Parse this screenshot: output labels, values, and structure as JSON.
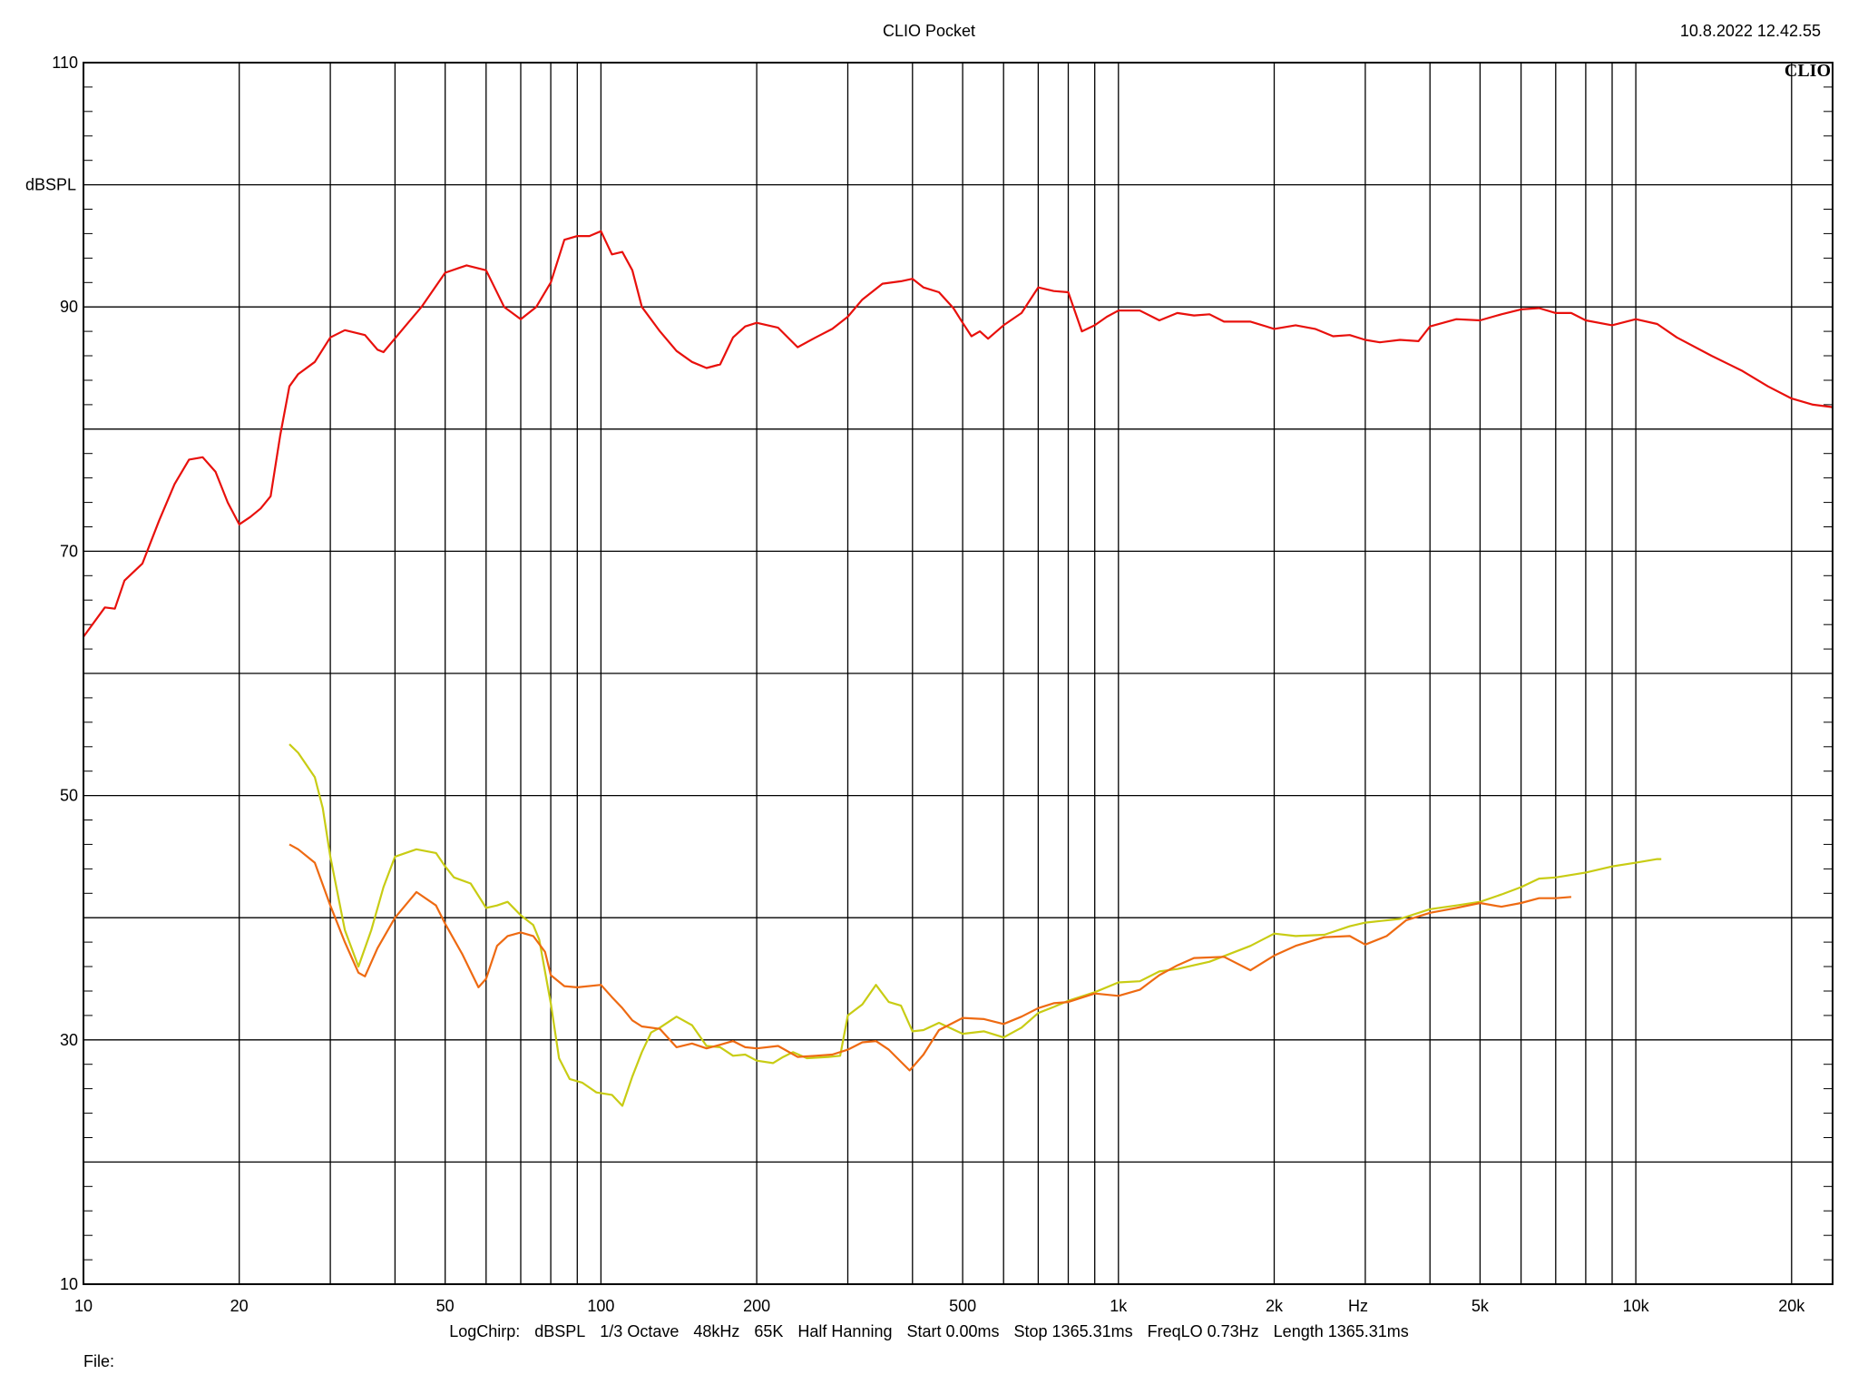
{
  "header": {
    "title": "CLIO Pocket",
    "timestamp": "10.8.2022 12.42.55",
    "logo": "CLIO"
  },
  "footer": {
    "settings": [
      "LogChirp:",
      "dBSPL",
      "1/3 Octave",
      "48kHz",
      "65K",
      "Half Hanning",
      "Start 0.00ms",
      "Stop 1365.31ms",
      "FreqLO 0.73Hz",
      "Length 1365.31ms"
    ],
    "file_label": "File:"
  },
  "chart_data": {
    "type": "line",
    "title": "",
    "xlabel": "Hz",
    "ylabel": "dBSPL",
    "xscale": "log",
    "xlim": [
      10,
      24000
    ],
    "ylim": [
      10,
      110
    ],
    "grid": true,
    "x_major_gridlines": [
      10,
      20,
      30,
      40,
      50,
      60,
      70,
      80,
      90,
      100,
      200,
      300,
      400,
      500,
      600,
      700,
      800,
      900,
      1000,
      2000,
      3000,
      4000,
      5000,
      6000,
      7000,
      8000,
      9000,
      10000,
      20000
    ],
    "y_gridlines": [
      10,
      20,
      30,
      40,
      50,
      60,
      70,
      80,
      90,
      100,
      110
    ],
    "x_tick_labels": [
      {
        "value": 10,
        "label": "10"
      },
      {
        "value": 20,
        "label": "20"
      },
      {
        "value": 50,
        "label": "50"
      },
      {
        "value": 100,
        "label": "100"
      },
      {
        "value": 200,
        "label": "200"
      },
      {
        "value": 500,
        "label": "500"
      },
      {
        "value": 1000,
        "label": "1k"
      },
      {
        "value": 2000,
        "label": "2k"
      },
      {
        "value": 5000,
        "label": "5k"
      },
      {
        "value": 10000,
        "label": "10k"
      },
      {
        "value": 20000,
        "label": "20k"
      }
    ],
    "y_tick_labels": [
      {
        "value": 110,
        "label": "110"
      },
      {
        "value": 90,
        "label": "90"
      },
      {
        "value": 70,
        "label": "70"
      },
      {
        "value": 50,
        "label": "50"
      },
      {
        "value": 30,
        "label": "30"
      },
      {
        "value": 10,
        "label": "10"
      }
    ],
    "series": [
      {
        "color": "#e8100c",
        "points": [
          [
            10,
            63
          ],
          [
            11,
            65.4
          ],
          [
            11.5,
            65.3
          ],
          [
            12,
            67.6
          ],
          [
            13,
            69
          ],
          [
            14,
            72.5
          ],
          [
            15,
            75.5
          ],
          [
            16,
            77.5
          ],
          [
            17,
            77.7
          ],
          [
            18,
            76.5
          ],
          [
            19,
            74
          ],
          [
            20,
            72.2
          ],
          [
            21,
            72.8
          ],
          [
            22,
            73.5
          ],
          [
            23,
            74.5
          ],
          [
            24,
            79.5
          ],
          [
            25,
            83.5
          ],
          [
            26,
            84.5
          ],
          [
            28,
            85.5
          ],
          [
            30,
            87.5
          ],
          [
            32,
            88.1
          ],
          [
            35,
            87.7
          ],
          [
            37,
            86.5
          ],
          [
            38,
            86.3
          ],
          [
            42,
            88.5
          ],
          [
            45,
            90
          ],
          [
            50,
            92.8
          ],
          [
            55,
            93.4
          ],
          [
            60,
            93
          ],
          [
            65,
            90
          ],
          [
            70,
            89
          ],
          [
            75,
            90
          ],
          [
            80,
            92
          ],
          [
            85,
            95.5
          ],
          [
            90,
            95.8
          ],
          [
            95,
            95.8
          ],
          [
            100,
            96.2
          ],
          [
            105,
            94.3
          ],
          [
            110,
            94.5
          ],
          [
            115,
            93
          ],
          [
            120,
            90
          ],
          [
            130,
            88
          ],
          [
            140,
            86.4
          ],
          [
            150,
            85.5
          ],
          [
            160,
            85
          ],
          [
            170,
            85.3
          ],
          [
            180,
            87.5
          ],
          [
            190,
            88.4
          ],
          [
            200,
            88.7
          ],
          [
            220,
            88.3
          ],
          [
            240,
            86.7
          ],
          [
            260,
            87.5
          ],
          [
            280,
            88.2
          ],
          [
            300,
            89.2
          ],
          [
            320,
            90.6
          ],
          [
            350,
            91.9
          ],
          [
            380,
            92.1
          ],
          [
            400,
            92.3
          ],
          [
            420,
            91.6
          ],
          [
            450,
            91.2
          ],
          [
            480,
            89.9
          ],
          [
            500,
            88.7
          ],
          [
            520,
            87.6
          ],
          [
            540,
            88
          ],
          [
            560,
            87.4
          ],
          [
            600,
            88.5
          ],
          [
            650,
            89.5
          ],
          [
            700,
            91.6
          ],
          [
            750,
            91.3
          ],
          [
            800,
            91.2
          ],
          [
            850,
            88
          ],
          [
            900,
            88.5
          ],
          [
            950,
            89.2
          ],
          [
            1000,
            89.7
          ],
          [
            1100,
            89.7
          ],
          [
            1200,
            88.9
          ],
          [
            1300,
            89.5
          ],
          [
            1400,
            89.3
          ],
          [
            1500,
            89.4
          ],
          [
            1600,
            88.8
          ],
          [
            1800,
            88.8
          ],
          [
            2000,
            88.2
          ],
          [
            2200,
            88.5
          ],
          [
            2400,
            88.2
          ],
          [
            2600,
            87.6
          ],
          [
            2800,
            87.7
          ],
          [
            3000,
            87.3
          ],
          [
            3200,
            87.1
          ],
          [
            3500,
            87.3
          ],
          [
            3800,
            87.2
          ],
          [
            4000,
            88.4
          ],
          [
            4500,
            89
          ],
          [
            5000,
            88.9
          ],
          [
            5500,
            89.4
          ],
          [
            6000,
            89.8
          ],
          [
            6500,
            89.9
          ],
          [
            7000,
            89.5
          ],
          [
            7500,
            89.5
          ],
          [
            8000,
            88.9
          ],
          [
            9000,
            88.5
          ],
          [
            10000,
            89
          ],
          [
            11000,
            88.6
          ],
          [
            12000,
            87.5
          ],
          [
            14000,
            86
          ],
          [
            16000,
            84.8
          ],
          [
            18000,
            83.5
          ],
          [
            20000,
            82.5
          ],
          [
            22000,
            82
          ],
          [
            24000,
            81.8
          ]
        ]
      },
      {
        "color": "#c8cc14",
        "points": [
          [
            25,
            54.2
          ],
          [
            26,
            53.5
          ],
          [
            28,
            51.5
          ],
          [
            29,
            49
          ],
          [
            30,
            45
          ],
          [
            32,
            39
          ],
          [
            34,
            36
          ],
          [
            36,
            39
          ],
          [
            38,
            42.5
          ],
          [
            40,
            45
          ],
          [
            44,
            45.6
          ],
          [
            48,
            45.3
          ],
          [
            50,
            44.2
          ],
          [
            52,
            43.3
          ],
          [
            56,
            42.8
          ],
          [
            60,
            40.8
          ],
          [
            63,
            41
          ],
          [
            66,
            41.3
          ],
          [
            70,
            40.2
          ],
          [
            74,
            39.4
          ],
          [
            76,
            38.2
          ],
          [
            80,
            33
          ],
          [
            83,
            28.5
          ],
          [
            87,
            26.8
          ],
          [
            92,
            26.5
          ],
          [
            98,
            25.7
          ],
          [
            105,
            25.5
          ],
          [
            110,
            24.6
          ],
          [
            115,
            27
          ],
          [
            120,
            29
          ],
          [
            125,
            30.6
          ],
          [
            130,
            31
          ],
          [
            140,
            31.9
          ],
          [
            150,
            31.2
          ],
          [
            160,
            29.5
          ],
          [
            170,
            29.4
          ],
          [
            180,
            28.7
          ],
          [
            190,
            28.8
          ],
          [
            200,
            28.3
          ],
          [
            215,
            28.1
          ],
          [
            225,
            28.6
          ],
          [
            235,
            29
          ],
          [
            250,
            28.5
          ],
          [
            275,
            28.6
          ],
          [
            290,
            28.7
          ],
          [
            300,
            32
          ],
          [
            320,
            32.9
          ],
          [
            340,
            34.5
          ],
          [
            360,
            33.1
          ],
          [
            380,
            32.8
          ],
          [
            400,
            30.7
          ],
          [
            420,
            30.8
          ],
          [
            450,
            31.4
          ],
          [
            500,
            30.5
          ],
          [
            550,
            30.7
          ],
          [
            600,
            30.2
          ],
          [
            650,
            31
          ],
          [
            700,
            32.2
          ],
          [
            750,
            32.7
          ],
          [
            800,
            33.2
          ],
          [
            900,
            33.9
          ],
          [
            1000,
            34.7
          ],
          [
            1100,
            34.8
          ],
          [
            1200,
            35.6
          ],
          [
            1300,
            35.8
          ],
          [
            1500,
            36.4
          ],
          [
            1800,
            37.7
          ],
          [
            2000,
            38.7
          ],
          [
            2200,
            38.5
          ],
          [
            2500,
            38.6
          ],
          [
            2800,
            39.3
          ],
          [
            3000,
            39.6
          ],
          [
            3500,
            39.9
          ],
          [
            4000,
            40.7
          ],
          [
            4500,
            41
          ],
          [
            5000,
            41.3
          ],
          [
            5500,
            41.9
          ],
          [
            6000,
            42.5
          ],
          [
            6500,
            43.2
          ],
          [
            7000,
            43.3
          ],
          [
            8000,
            43.7
          ],
          [
            9000,
            44.2
          ],
          [
            10000,
            44.5
          ],
          [
            11000,
            44.8
          ],
          [
            11200,
            44.8
          ]
        ]
      },
      {
        "color": "#ee6a12",
        "points": [
          [
            25,
            46
          ],
          [
            26,
            45.6
          ],
          [
            28,
            44.5
          ],
          [
            30,
            41
          ],
          [
            32,
            38
          ],
          [
            34,
            35.5
          ],
          [
            35,
            35.2
          ],
          [
            37,
            37.5
          ],
          [
            40,
            40
          ],
          [
            44,
            42.1
          ],
          [
            48,
            41
          ],
          [
            50,
            39.5
          ],
          [
            54,
            37
          ],
          [
            58,
            34.3
          ],
          [
            60,
            35
          ],
          [
            63,
            37.7
          ],
          [
            66,
            38.5
          ],
          [
            70,
            38.8
          ],
          [
            74,
            38.5
          ],
          [
            78,
            37.2
          ],
          [
            80,
            35.3
          ],
          [
            85,
            34.4
          ],
          [
            90,
            34.3
          ],
          [
            100,
            34.5
          ],
          [
            105,
            33.5
          ],
          [
            110,
            32.6
          ],
          [
            115,
            31.6
          ],
          [
            120,
            31.1
          ],
          [
            130,
            30.9
          ],
          [
            140,
            29.4
          ],
          [
            150,
            29.7
          ],
          [
            160,
            29.3
          ],
          [
            170,
            29.6
          ],
          [
            180,
            29.9
          ],
          [
            190,
            29.4
          ],
          [
            200,
            29.3
          ],
          [
            220,
            29.5
          ],
          [
            240,
            28.6
          ],
          [
            260,
            28.7
          ],
          [
            280,
            28.8
          ],
          [
            300,
            29.2
          ],
          [
            320,
            29.8
          ],
          [
            340,
            29.9
          ],
          [
            360,
            29.2
          ],
          [
            380,
            28.2
          ],
          [
            395,
            27.5
          ],
          [
            420,
            28.8
          ],
          [
            450,
            30.8
          ],
          [
            500,
            31.8
          ],
          [
            550,
            31.7
          ],
          [
            600,
            31.3
          ],
          [
            650,
            31.9
          ],
          [
            700,
            32.6
          ],
          [
            750,
            33
          ],
          [
            800,
            33.1
          ],
          [
            900,
            33.8
          ],
          [
            1000,
            33.6
          ],
          [
            1100,
            34.1
          ],
          [
            1200,
            35.3
          ],
          [
            1300,
            36.1
          ],
          [
            1400,
            36.7
          ],
          [
            1600,
            36.8
          ],
          [
            1800,
            35.7
          ],
          [
            2000,
            36.9
          ],
          [
            2200,
            37.7
          ],
          [
            2500,
            38.4
          ],
          [
            2800,
            38.5
          ],
          [
            3000,
            37.8
          ],
          [
            3300,
            38.5
          ],
          [
            3600,
            39.8
          ],
          [
            4000,
            40.4
          ],
          [
            4500,
            40.8
          ],
          [
            5000,
            41.2
          ],
          [
            5500,
            40.9
          ],
          [
            6000,
            41.2
          ],
          [
            6500,
            41.6
          ],
          [
            7000,
            41.6
          ],
          [
            7500,
            41.7
          ]
        ]
      }
    ]
  }
}
